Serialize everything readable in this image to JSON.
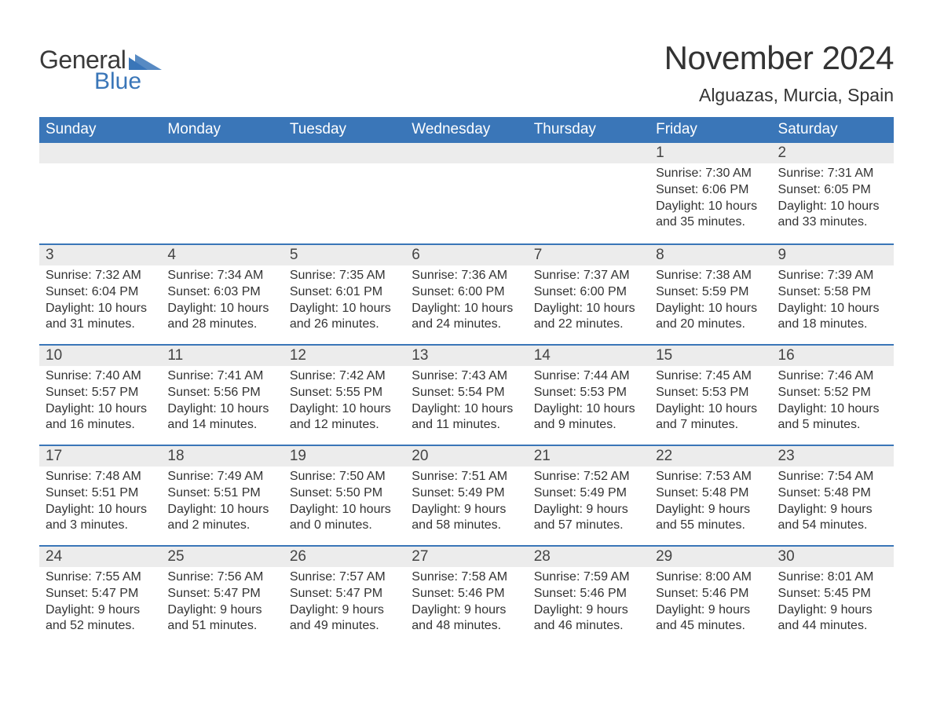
{
  "logo": {
    "word1": "General",
    "word2": "Blue",
    "word1_color": "#3a3a3a",
    "word2_color": "#3a76b8",
    "tri_color": "#3a76b8"
  },
  "title": "November 2024",
  "location": "Alguazas, Murcia, Spain",
  "header_bg": "#3a76b8",
  "header_fg": "#ffffff",
  "daynum_bg": "#ececec",
  "text_color": "#333333",
  "day_headers": [
    "Sunday",
    "Monday",
    "Tuesday",
    "Wednesday",
    "Thursday",
    "Friday",
    "Saturday"
  ],
  "weeks": [
    [
      null,
      null,
      null,
      null,
      null,
      {
        "n": "1",
        "sunrise": "7:30 AM",
        "sunset": "6:06 PM",
        "daylight": "10 hours and 35 minutes."
      },
      {
        "n": "2",
        "sunrise": "7:31 AM",
        "sunset": "6:05 PM",
        "daylight": "10 hours and 33 minutes."
      }
    ],
    [
      {
        "n": "3",
        "sunrise": "7:32 AM",
        "sunset": "6:04 PM",
        "daylight": "10 hours and 31 minutes."
      },
      {
        "n": "4",
        "sunrise": "7:34 AM",
        "sunset": "6:03 PM",
        "daylight": "10 hours and 28 minutes."
      },
      {
        "n": "5",
        "sunrise": "7:35 AM",
        "sunset": "6:01 PM",
        "daylight": "10 hours and 26 minutes."
      },
      {
        "n": "6",
        "sunrise": "7:36 AM",
        "sunset": "6:00 PM",
        "daylight": "10 hours and 24 minutes."
      },
      {
        "n": "7",
        "sunrise": "7:37 AM",
        "sunset": "6:00 PM",
        "daylight": "10 hours and 22 minutes."
      },
      {
        "n": "8",
        "sunrise": "7:38 AM",
        "sunset": "5:59 PM",
        "daylight": "10 hours and 20 minutes."
      },
      {
        "n": "9",
        "sunrise": "7:39 AM",
        "sunset": "5:58 PM",
        "daylight": "10 hours and 18 minutes."
      }
    ],
    [
      {
        "n": "10",
        "sunrise": "7:40 AM",
        "sunset": "5:57 PM",
        "daylight": "10 hours and 16 minutes."
      },
      {
        "n": "11",
        "sunrise": "7:41 AM",
        "sunset": "5:56 PM",
        "daylight": "10 hours and 14 minutes."
      },
      {
        "n": "12",
        "sunrise": "7:42 AM",
        "sunset": "5:55 PM",
        "daylight": "10 hours and 12 minutes."
      },
      {
        "n": "13",
        "sunrise": "7:43 AM",
        "sunset": "5:54 PM",
        "daylight": "10 hours and 11 minutes."
      },
      {
        "n": "14",
        "sunrise": "7:44 AM",
        "sunset": "5:53 PM",
        "daylight": "10 hours and 9 minutes."
      },
      {
        "n": "15",
        "sunrise": "7:45 AM",
        "sunset": "5:53 PM",
        "daylight": "10 hours and 7 minutes."
      },
      {
        "n": "16",
        "sunrise": "7:46 AM",
        "sunset": "5:52 PM",
        "daylight": "10 hours and 5 minutes."
      }
    ],
    [
      {
        "n": "17",
        "sunrise": "7:48 AM",
        "sunset": "5:51 PM",
        "daylight": "10 hours and 3 minutes."
      },
      {
        "n": "18",
        "sunrise": "7:49 AM",
        "sunset": "5:51 PM",
        "daylight": "10 hours and 2 minutes."
      },
      {
        "n": "19",
        "sunrise": "7:50 AM",
        "sunset": "5:50 PM",
        "daylight": "10 hours and 0 minutes."
      },
      {
        "n": "20",
        "sunrise": "7:51 AM",
        "sunset": "5:49 PM",
        "daylight": "9 hours and 58 minutes."
      },
      {
        "n": "21",
        "sunrise": "7:52 AM",
        "sunset": "5:49 PM",
        "daylight": "9 hours and 57 minutes."
      },
      {
        "n": "22",
        "sunrise": "7:53 AM",
        "sunset": "5:48 PM",
        "daylight": "9 hours and 55 minutes."
      },
      {
        "n": "23",
        "sunrise": "7:54 AM",
        "sunset": "5:48 PM",
        "daylight": "9 hours and 54 minutes."
      }
    ],
    [
      {
        "n": "24",
        "sunrise": "7:55 AM",
        "sunset": "5:47 PM",
        "daylight": "9 hours and 52 minutes."
      },
      {
        "n": "25",
        "sunrise": "7:56 AM",
        "sunset": "5:47 PM",
        "daylight": "9 hours and 51 minutes."
      },
      {
        "n": "26",
        "sunrise": "7:57 AM",
        "sunset": "5:47 PM",
        "daylight": "9 hours and 49 minutes."
      },
      {
        "n": "27",
        "sunrise": "7:58 AM",
        "sunset": "5:46 PM",
        "daylight": "9 hours and 48 minutes."
      },
      {
        "n": "28",
        "sunrise": "7:59 AM",
        "sunset": "5:46 PM",
        "daylight": "9 hours and 46 minutes."
      },
      {
        "n": "29",
        "sunrise": "8:00 AM",
        "sunset": "5:46 PM",
        "daylight": "9 hours and 45 minutes."
      },
      {
        "n": "30",
        "sunrise": "8:01 AM",
        "sunset": "5:45 PM",
        "daylight": "9 hours and 44 minutes."
      }
    ]
  ],
  "labels": {
    "sunrise": "Sunrise: ",
    "sunset": "Sunset: ",
    "daylight": "Daylight: "
  }
}
